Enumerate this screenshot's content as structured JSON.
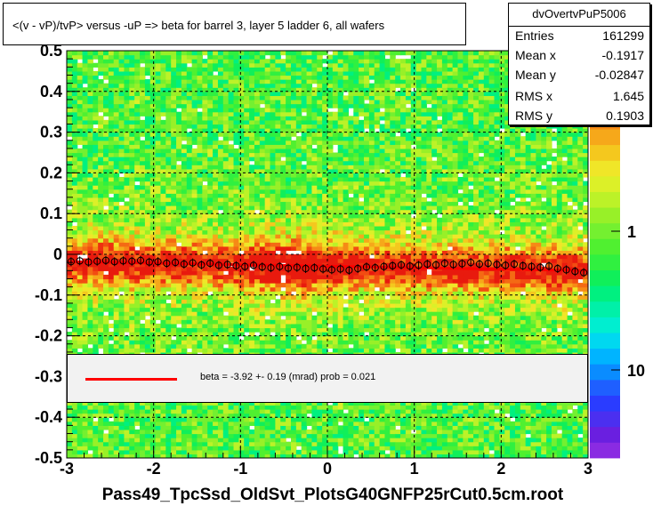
{
  "title": "<(v - vP)/tvP> versus  -uP => beta for barrel 3, layer 5 ladder 6, all wafers",
  "stats": {
    "name": "dvOvertvPuP5006",
    "rows": [
      {
        "label": "Entries",
        "value": "161299"
      },
      {
        "label": "Mean x",
        "value": "-0.1917"
      },
      {
        "label": "Mean y",
        "value": "-0.02847"
      },
      {
        "label": "RMS x",
        "value": "1.645"
      },
      {
        "label": "RMS y",
        "value": "0.1903"
      }
    ]
  },
  "fit": {
    "text": "beta =   -3.92 +-  0.19 (mrad) prob = 0.021",
    "line_color": "#ff0000"
  },
  "chart_data": {
    "type": "heatmap",
    "xlabel": "Pass49_TpcSsd_OldSvt_PlotsG40GNFP25rCut0.5cm.root",
    "ylabel": "",
    "xlim": [
      -3,
      3
    ],
    "ylim": [
      -0.5,
      0.5
    ],
    "x_ticks": [
      "-3",
      "-2",
      "-1",
      "0",
      "1",
      "2",
      "3"
    ],
    "y_ticks": [
      "-0.5",
      "-0.4",
      "-0.3",
      "-0.2",
      "-0.1",
      "0",
      "0.1",
      "0.2",
      "0.3",
      "0.4",
      "0.5"
    ],
    "z_scale": "log",
    "z_tick_labels": [
      "1",
      "10"
    ],
    "z_top_label_fragment": "0",
    "grid": true,
    "fit_line": {
      "x": [
        -3,
        3
      ],
      "y": [
        -0.018,
        -0.04
      ],
      "color": "#ff0000"
    },
    "profile_points": [
      {
        "x": -2.95,
        "y": -0.018
      },
      {
        "x": -2.85,
        "y": -0.016
      },
      {
        "x": -2.75,
        "y": -0.019
      },
      {
        "x": -2.65,
        "y": -0.017
      },
      {
        "x": -2.55,
        "y": -0.015
      },
      {
        "x": -2.45,
        "y": -0.018
      },
      {
        "x": -2.35,
        "y": -0.016
      },
      {
        "x": -2.25,
        "y": -0.017
      },
      {
        "x": -2.15,
        "y": -0.015
      },
      {
        "x": -2.05,
        "y": -0.019
      },
      {
        "x": -1.95,
        "y": -0.018
      },
      {
        "x": -1.85,
        "y": -0.022
      },
      {
        "x": -1.75,
        "y": -0.02
      },
      {
        "x": -1.65,
        "y": -0.024
      },
      {
        "x": -1.55,
        "y": -0.021
      },
      {
        "x": -1.45,
        "y": -0.026
      },
      {
        "x": -1.35,
        "y": -0.022
      },
      {
        "x": -1.25,
        "y": -0.027
      },
      {
        "x": -1.15,
        "y": -0.025
      },
      {
        "x": -1.05,
        "y": -0.028
      },
      {
        "x": -0.95,
        "y": -0.03
      },
      {
        "x": -0.85,
        "y": -0.027
      },
      {
        "x": -0.75,
        "y": -0.031
      },
      {
        "x": -0.65,
        "y": -0.033
      },
      {
        "x": -0.55,
        "y": -0.03
      },
      {
        "x": -0.45,
        "y": -0.034
      },
      {
        "x": -0.35,
        "y": -0.032
      },
      {
        "x": -0.25,
        "y": -0.035
      },
      {
        "x": -0.15,
        "y": -0.033
      },
      {
        "x": -0.05,
        "y": -0.036
      },
      {
        "x": 0.05,
        "y": -0.038
      },
      {
        "x": 0.15,
        "y": -0.036
      },
      {
        "x": 0.25,
        "y": -0.039
      },
      {
        "x": 0.35,
        "y": -0.035
      },
      {
        "x": 0.45,
        "y": -0.031
      },
      {
        "x": 0.55,
        "y": -0.033
      },
      {
        "x": 0.65,
        "y": -0.03
      },
      {
        "x": 0.75,
        "y": -0.028
      },
      {
        "x": 0.85,
        "y": -0.026
      },
      {
        "x": 0.95,
        "y": -0.029
      },
      {
        "x": 1.05,
        "y": -0.027
      },
      {
        "x": 1.15,
        "y": -0.024
      },
      {
        "x": 1.25,
        "y": -0.026
      },
      {
        "x": 1.35,
        "y": -0.022
      },
      {
        "x": 1.45,
        "y": -0.025
      },
      {
        "x": 1.55,
        "y": -0.023
      },
      {
        "x": 1.65,
        "y": -0.02
      },
      {
        "x": 1.75,
        "y": -0.024
      },
      {
        "x": 1.85,
        "y": -0.022
      },
      {
        "x": 1.95,
        "y": -0.025
      },
      {
        "x": 2.05,
        "y": -0.027
      },
      {
        "x": 2.15,
        "y": -0.024
      },
      {
        "x": 2.25,
        "y": -0.028
      },
      {
        "x": 2.35,
        "y": -0.03
      },
      {
        "x": 2.45,
        "y": -0.032
      },
      {
        "x": 2.55,
        "y": -0.029
      },
      {
        "x": 2.65,
        "y": -0.035
      },
      {
        "x": 2.75,
        "y": -0.038
      },
      {
        "x": 2.85,
        "y": -0.042
      },
      {
        "x": 2.95,
        "y": -0.045
      }
    ]
  }
}
